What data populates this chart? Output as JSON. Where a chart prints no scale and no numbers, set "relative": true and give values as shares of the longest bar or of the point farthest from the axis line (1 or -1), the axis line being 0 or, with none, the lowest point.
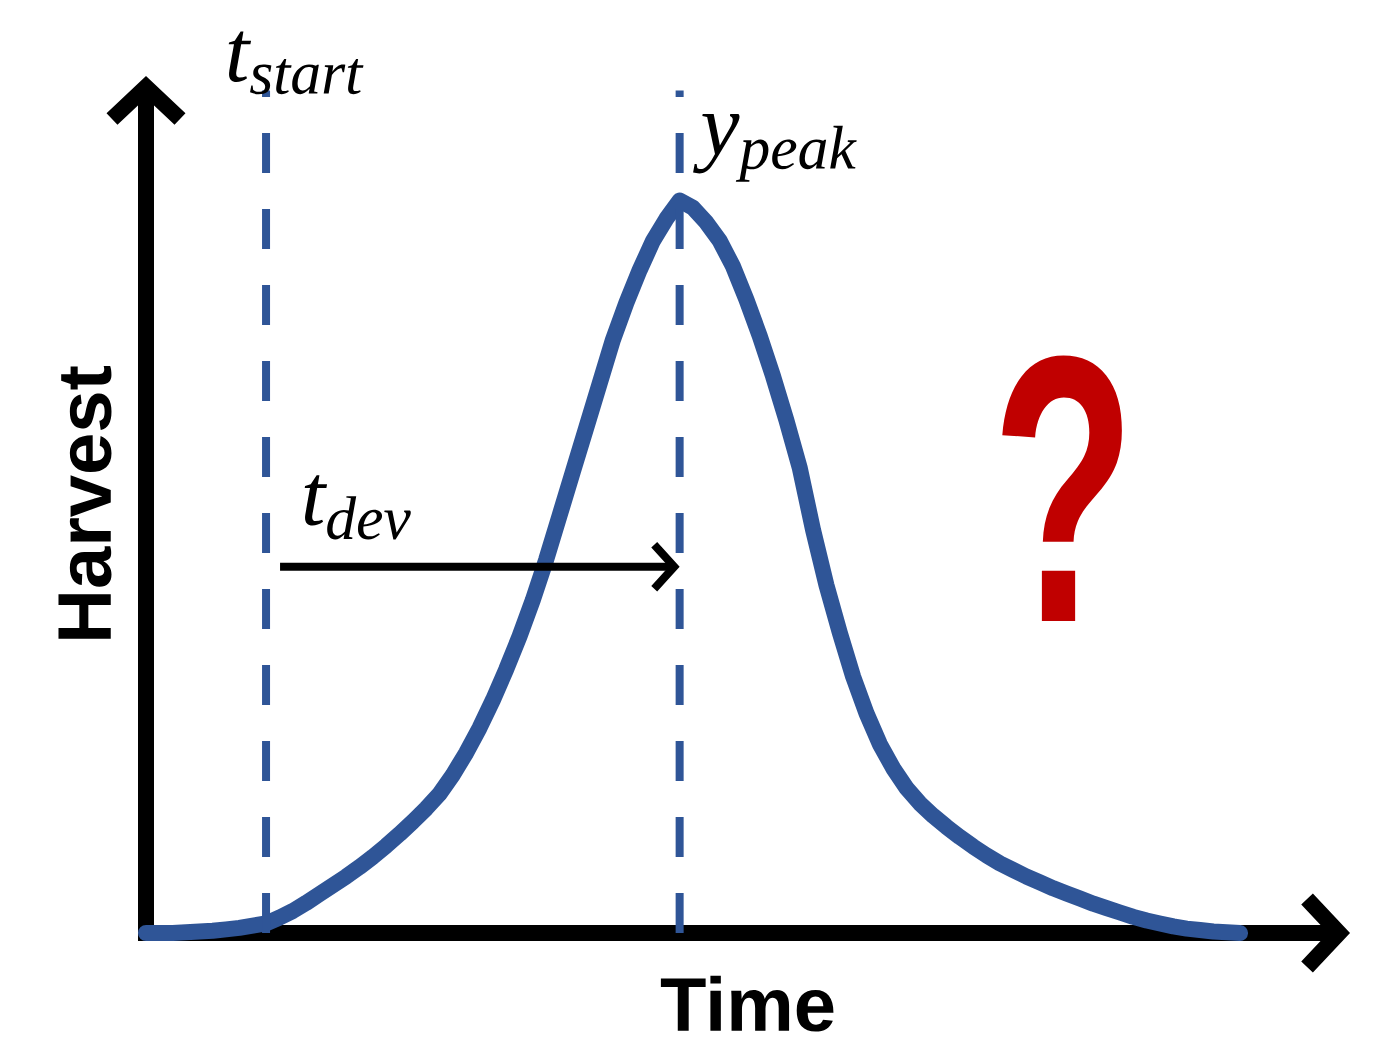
{
  "chart_data": {
    "type": "line",
    "xlabel": "Time",
    "ylabel": "Harvest",
    "relative": true,
    "categories": [
      null,
      null,
      null,
      null,
      null,
      null,
      null,
      null,
      null,
      null,
      null,
      null,
      null,
      null,
      null,
      null,
      null,
      null,
      null,
      null,
      null,
      null,
      null,
      null,
      null,
      null,
      null,
      null,
      null,
      null,
      null,
      null,
      null,
      null,
      null,
      null,
      null,
      null,
      null,
      null,
      null,
      null,
      null,
      null,
      null,
      null,
      null,
      null,
      null,
      null,
      null,
      null,
      null,
      null,
      null,
      null,
      null,
      null,
      null,
      null,
      null,
      null,
      null,
      null,
      null,
      null,
      null,
      null,
      null,
      null,
      null,
      null,
      null,
      null,
      null,
      null,
      null,
      null,
      null,
      null,
      null,
      null,
      null
    ],
    "series": [
      {
        "color": "#2f5597",
        "line_style": "solid",
        "values": [
          0,
          0,
          0,
          0.001,
          0.002,
          0.003,
          0.005,
          0.007,
          0.01,
          0.013,
          0.021,
          0.03,
          0.041,
          0.053,
          0.065,
          0.077,
          0.09,
          0.104,
          0.119,
          0.135,
          0.152,
          0.17,
          0.19,
          0.216,
          0.246,
          0.28,
          0.318,
          0.36,
          0.405,
          0.455,
          0.51,
          0.57,
          0.63,
          0.69,
          0.75,
          0.81,
          0.86,
          0.905,
          0.945,
          0.975,
          1,
          0.99,
          0.97,
          0.945,
          0.91,
          0.865,
          0.815,
          0.76,
          0.7,
          0.635,
          0.55,
          0.475,
          0.41,
          0.35,
          0.3,
          0.258,
          0.225,
          0.198,
          0.177,
          0.16,
          0.145,
          0.131,
          0.118,
          0.106,
          0.095,
          0.086,
          0.077,
          0.069,
          0.061,
          0.054,
          0.047,
          0.04,
          0.034,
          0.028,
          0.022,
          0.017,
          0.013,
          0.009,
          0.006,
          0.004,
          0.002,
          0.001,
          0
        ]
      }
    ],
    "annotations": [
      "t$_{start}$",
      "y$_{peak}$",
      "t$_{dev}$",
      "?"
    ]
  }
}
